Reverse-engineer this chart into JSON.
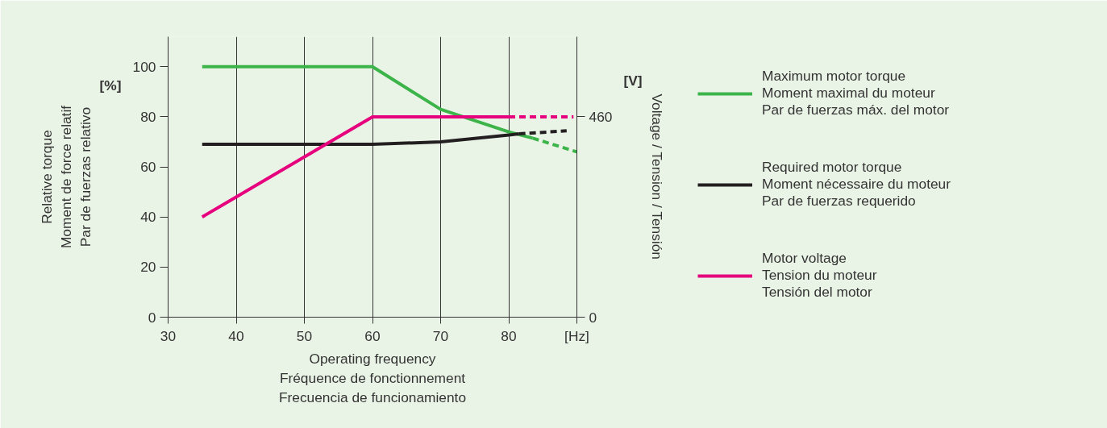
{
  "chart_data": {
    "type": "line",
    "xlabel": "Operating frequency\nFréquence de fonctionnement\nFrecuencia de funcionamiento",
    "ylabel": "Relative torque\nMoment de force relatif\nPar de fuerzas relativo",
    "y2label": "Voltage / Tension / Tensión",
    "annotations": [
      "[%]",
      "[V]"
    ],
    "xlim": [
      30,
      90
    ],
    "xticks": [
      30,
      40,
      50,
      60,
      70,
      80,
      {
        "value": 90,
        "label": "[Hz]"
      }
    ],
    "ylim": [
      0,
      112
    ],
    "yticks": [
      0,
      20,
      40,
      60,
      80,
      100
    ],
    "y2lim": [
      0,
      644
    ],
    "y2ticks": [
      0,
      460
    ],
    "grid": "x",
    "legend": "right",
    "marker": "none",
    "series": [
      {
        "name": "Maximum motor torque\nMoment maximal du moteur\nPar de fuerzas máx. del motor",
        "color": "#3cb44a",
        "x": [
          35,
          60,
          70,
          80,
          83.5
        ],
        "values": [
          100,
          100,
          83,
          74,
          71.5
        ],
        "line_style": "solid"
      },
      {
        "color": "#3cb44a",
        "x": [
          83.5,
          90
        ],
        "values": [
          71.5,
          66
        ],
        "line_style": "dashed"
      },
      {
        "name": "Required motor torque\nMoment nécessaire du moteur\nPar de fuerzas requerido",
        "color": "#231f20",
        "x": [
          35,
          60,
          70,
          80,
          81.5
        ],
        "values": [
          69,
          69,
          70,
          72.7,
          73.2
        ],
        "line_style": "solid"
      },
      {
        "color": "#231f20",
        "x": [
          81.5,
          88.5
        ],
        "values": [
          73.2,
          74.4
        ],
        "line_style": "dashed"
      },
      {
        "name": "Motor voltage\nTension du moteur\nTensión del motor",
        "color": "#e6007e",
        "x": [
          35,
          60,
          80
        ],
        "values": [
          230,
          460,
          460
        ],
        "line_style": "solid",
        "axis": "y2"
      },
      {
        "color": "#e6007e",
        "x": [
          80,
          89.5
        ],
        "values": [
          460,
          460
        ],
        "line_style": "dashed",
        "axis": "y2"
      }
    ]
  }
}
